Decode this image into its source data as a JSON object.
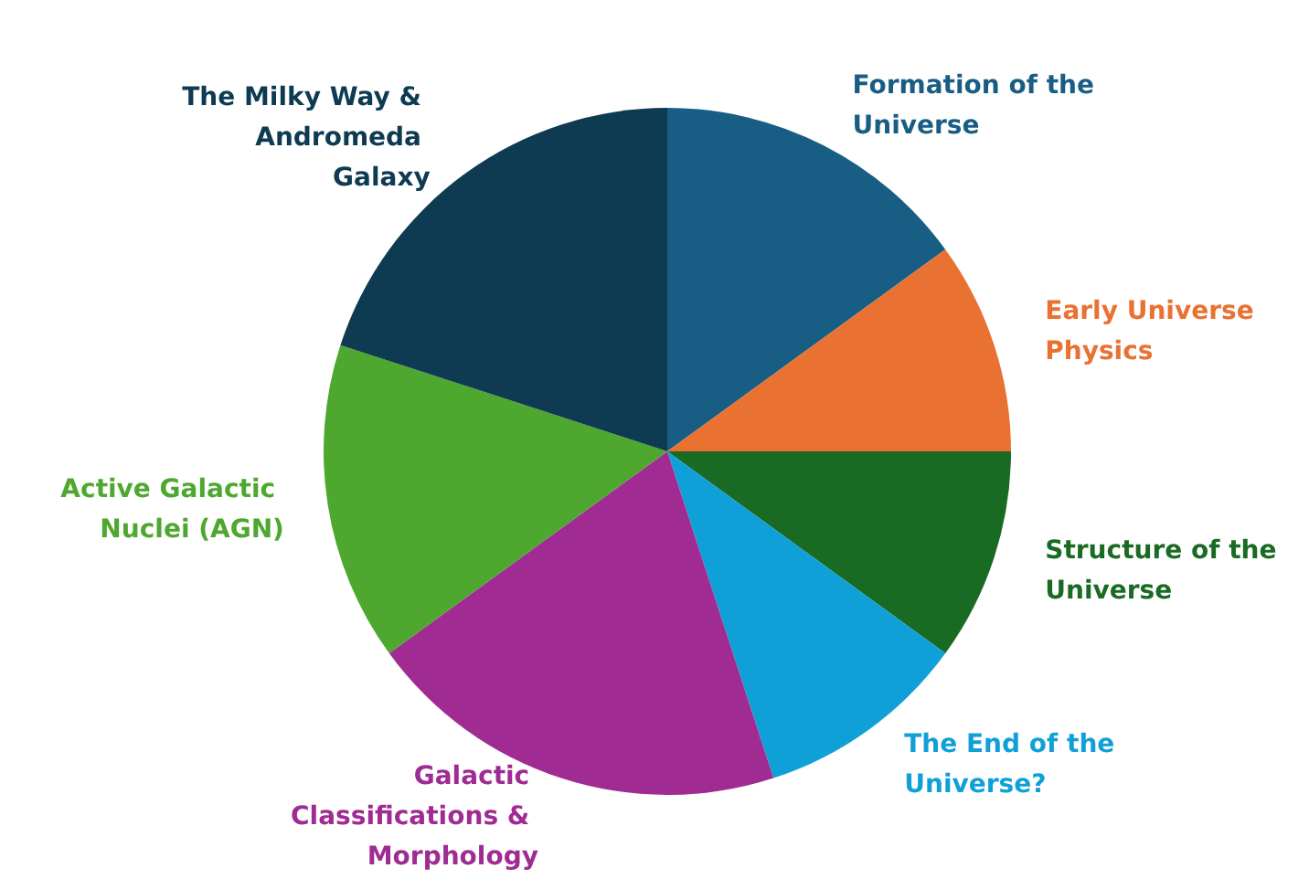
{
  "chart_data": {
    "type": "pie",
    "categories": [
      "Formation of the Universe",
      "Early Universe Physics",
      "Structure of the Universe",
      "The End of the Universe?",
      "Galactic Classifications & Morphology",
      "Active Galactic Nuclei (AGN)",
      "The Milky Way & Andromeda Galaxy"
    ],
    "values": [
      15,
      10,
      10,
      10,
      20,
      15,
      20
    ],
    "colors": [
      "#185e84",
      "#e97132",
      "#196b24",
      "#10a0d8",
      "#a02b93",
      "#4ea72e",
      "#0e3a52"
    ],
    "legend": false
  }
}
